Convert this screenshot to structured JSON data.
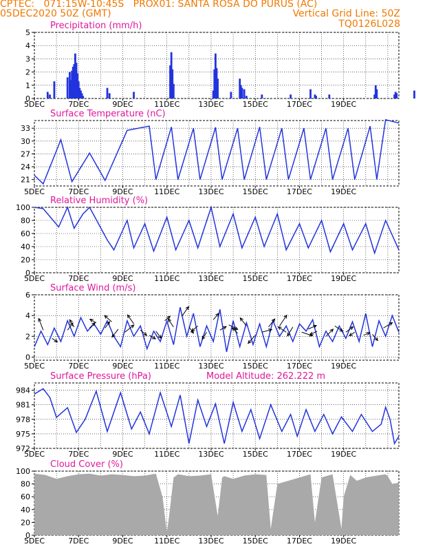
{
  "header": {
    "line1": "CPTEC:   071:15W-10:45S   PROX01: SANTA ROSA DO PURUS (AC)",
    "line2_left": "05DEC2020 50Z (GMT)",
    "line2_right": "Vertical Grid Line: 50Z",
    "line3_right": "TQ0126L028"
  },
  "colors": {
    "header": "#f07800",
    "title": "#e0179b",
    "line": "#2233dd",
    "cloud": "#a9a9a9",
    "arrow": "#000000"
  },
  "x_labels": [
    "5DEC",
    "7DEC",
    "9DEC",
    "11DEC",
    "13DEC",
    "15DEC",
    "17DEC",
    "19DEC"
  ],
  "chart_data": [
    {
      "type": "bar",
      "title": "Precipitation (mm/h)",
      "ylim": [
        0,
        5
      ],
      "yticks": [
        0,
        1,
        2,
        3,
        4,
        5
      ],
      "x_days": [
        0.6,
        0.7,
        0.9,
        1.5,
        1.6,
        1.65,
        1.7,
        1.75,
        1.8,
        1.85,
        1.9,
        1.95,
        2.0,
        2.05,
        2.1,
        2.15,
        2.2,
        3.3,
        3.4,
        4.5,
        6.15,
        6.2,
        6.25,
        6.3,
        8.1,
        8.15,
        8.2,
        8.25,
        8.3,
        8.9,
        9.3,
        9.35,
        9.4,
        9.5,
        9.6,
        10.3,
        11.6,
        12.5,
        12.7,
        12.75,
        13.35,
        15.4,
        15.45,
        15.5,
        16.3,
        16.35,
        16.4,
        17.2
      ],
      "values": [
        0.5,
        0.3,
        1.3,
        1.6,
        2.0,
        1.4,
        2.1,
        2.4,
        2.6,
        3.4,
        2.7,
        1.9,
        1.3,
        0.8,
        0.6,
        0.4,
        0.2,
        0.8,
        0.4,
        0.5,
        2.5,
        3.5,
        2.2,
        1.1,
        0.6,
        2.2,
        3.4,
        2.3,
        1.5,
        0.5,
        1.5,
        1.0,
        0.8,
        0.7,
        0.2,
        0.3,
        0.3,
        0.7,
        0.3,
        0.2,
        0.3,
        0.3,
        1.0,
        0.7,
        0.3,
        0.5,
        0.4,
        0.6
      ]
    },
    {
      "type": "line",
      "title": "Surface Temperature (nC)",
      "ylim": [
        19.5,
        34.8
      ],
      "yticks": [
        21,
        24,
        27,
        30,
        33
      ],
      "series": [
        {
          "x": [
            0,
            0.4,
            1.2,
            1.7,
            2.5,
            3.2,
            4.2,
            5.2,
            5.5,
            6.2,
            6.5,
            7.2,
            7.5,
            8.2,
            8.5,
            9.2,
            9.5,
            10.2,
            10.5,
            11.2,
            11.5,
            12.2,
            12.5,
            13.2,
            13.5,
            14.2,
            14.5,
            15.2,
            15.5,
            15.9,
            16.5
          ],
          "y": [
            22.0,
            20.0,
            30.3,
            20.5,
            27.2,
            20.8,
            32.5,
            33.5,
            21.0,
            33.3,
            21.0,
            33.0,
            21.0,
            33.2,
            21.0,
            33.0,
            21.0,
            33.3,
            21.0,
            33.0,
            21.0,
            33.0,
            21.0,
            33.0,
            21.0,
            33.0,
            21.0,
            33.5,
            21.0,
            35.0,
            34.2
          ]
        }
      ]
    },
    {
      "type": "line",
      "title": "Relative Humidity (%)",
      "ylim": [
        0,
        100
      ],
      "yticks": [
        0,
        20,
        40,
        60,
        80,
        100
      ],
      "series": [
        {
          "x": [
            0,
            0.4,
            0.8,
            1.1,
            1.5,
            1.8,
            2.2,
            2.5,
            3.3,
            3.6,
            4.2,
            4.5,
            5.0,
            5.4,
            6.0,
            6.4,
            7.0,
            7.4,
            8.0,
            8.4,
            9.0,
            9.4,
            10.0,
            10.4,
            11.0,
            11.4,
            12.0,
            12.4,
            13.0,
            13.4,
            14.0,
            14.4,
            15.0,
            15.4,
            15.9,
            16.5
          ],
          "y": [
            100,
            98,
            82,
            70,
            100,
            68,
            90,
            100,
            50,
            35,
            80,
            38,
            75,
            33,
            85,
            35,
            80,
            38,
            100,
            40,
            90,
            38,
            85,
            40,
            90,
            35,
            75,
            38,
            80,
            32,
            75,
            35,
            75,
            30,
            80,
            35
          ]
        }
      ]
    },
    {
      "type": "line",
      "title": "Surface Wind (m/s)",
      "ylim": [
        -0.3,
        6
      ],
      "yticks": [
        0,
        2,
        4,
        6
      ],
      "series": [
        {
          "x": [
            0,
            0.3,
            0.6,
            0.9,
            1.2,
            1.5,
            1.8,
            2.1,
            2.4,
            2.7,
            3.0,
            3.3,
            3.6,
            3.9,
            4.2,
            4.5,
            4.8,
            5.1,
            5.4,
            5.7,
            6.0,
            6.3,
            6.6,
            6.9,
            7.2,
            7.5,
            7.8,
            8.1,
            8.4,
            8.7,
            9.0,
            9.3,
            9.6,
            9.9,
            10.2,
            10.5,
            10.8,
            11.1,
            11.4,
            11.7,
            12.0,
            12.3,
            12.6,
            12.9,
            13.2,
            13.5,
            13.8,
            14.1,
            14.4,
            14.7,
            15.0,
            15.3,
            15.6,
            15.9,
            16.2,
            16.5
          ],
          "y": [
            1.0,
            2.5,
            1.2,
            2.8,
            1.5,
            3.5,
            2.0,
            3.8,
            2.5,
            3.2,
            2.2,
            3.5,
            2.0,
            1.0,
            3.5,
            2.0,
            3.0,
            0.8,
            2.5,
            1.5,
            3.5,
            1.2,
            4.8,
            2.0,
            4.2,
            1.0,
            3.0,
            1.5,
            4.6,
            0.5,
            3.5,
            1.0,
            3.3,
            1.2,
            3.2,
            1.0,
            3.5,
            2.0,
            3.0,
            1.5,
            3.2,
            2.5,
            3.6,
            1.0,
            2.5,
            1.5,
            3.0,
            1.8,
            3.4,
            1.5,
            4.2,
            1.0,
            3.5,
            2.0,
            4.0,
            2.4
          ]
        }
      ],
      "arrows": {
        "x": [
          0.4,
          0.8,
          1.5,
          1.8,
          2.5,
          2.8,
          3.2,
          3.5,
          3.8,
          4.1,
          4.5,
          4.8,
          5.2,
          5.5,
          5.9,
          6.3,
          6.7,
          7.0,
          7.4,
          7.8,
          8.1,
          8.4,
          8.8,
          9.2,
          9.6,
          10.0,
          10.3,
          10.6,
          11.1,
          11.4,
          11.7,
          12.1,
          12.4,
          12.8,
          13.2,
          13.6,
          14.1,
          14.5,
          14.9,
          15.3,
          15.8
        ],
        "y": [
          2.6,
          1.8,
          2.6,
          2.9,
          2.8,
          3.3,
          2.8,
          3.4,
          2.7,
          2.4,
          3.2,
          2.6,
          2.1,
          2.5,
          3.5,
          2.9,
          4.0,
          2.9,
          3.0,
          2.4,
          3.6,
          2.6,
          3.1,
          2.3,
          3.0,
          2.1,
          2.4,
          2.9,
          3.0,
          2.4,
          2.9,
          2.4,
          2.7,
          2.5,
          2.0,
          3.0,
          2.4,
          2.4,
          2.1,
          2.2,
          2.8
        ],
        "u": [
          -0.5,
          0.6,
          0.6,
          -0.5,
          0.6,
          -0.7,
          0.5,
          -0.8,
          -0.7,
          1.0,
          -0.7,
          0.7,
          0.7,
          0.6,
          0.6,
          -0.6,
          0.7,
          0.5,
          -0.7,
          -0.5,
          0.6,
          0.7,
          1.0,
          -0.6,
          -0.7,
          -0.8,
          1.1,
          0.7,
          0.8,
          -0.9,
          -0.6,
          1.2,
          0.9,
          -0.8,
          0.8,
          0.9,
          0.8,
          -0.6,
          0.7,
          0.6,
          1.0
        ],
        "v": [
          1.3,
          -0.4,
          0.8,
          0.8,
          0.6,
          0.4,
          0.7,
          0.7,
          -0.9,
          0.8,
          1.0,
          -0.6,
          -0.4,
          -0.8,
          0.5,
          0.9,
          1.0,
          -0.7,
          -0.6,
          -0.8,
          0.7,
          0.4,
          -0.5,
          0.6,
          0.9,
          -0.9,
          0.3,
          0.9,
          1.2,
          0.6,
          -1.0,
          -0.4,
          0.4,
          -0.4,
          0.8,
          -0.6,
          0.6,
          -0.4,
          0.3,
          -0.7,
          0.6
        ]
      }
    },
    {
      "type": "line",
      "title": "Surface Pressure (hPa)",
      "subtitle": "Model Altitude: 262.222  m",
      "ylim": [
        972,
        985.5
      ],
      "yticks": [
        972,
        975,
        978,
        981,
        984
      ],
      "series": [
        {
          "x": [
            0,
            0.4,
            0.7,
            1.0,
            1.5,
            1.9,
            2.3,
            2.8,
            3.3,
            3.9,
            4.4,
            4.8,
            5.2,
            5.7,
            6.2,
            6.6,
            7.0,
            7.4,
            7.8,
            8.2,
            8.6,
            9.0,
            9.4,
            9.8,
            10.2,
            10.7,
            11.2,
            11.6,
            11.9,
            12.3,
            12.7,
            13.1,
            13.5,
            13.9,
            14.4,
            14.8,
            15.3,
            15.7,
            15.9,
            16.1,
            16.3,
            16.5
          ],
          "y": [
            983.2,
            984.3,
            982.5,
            978.4,
            980.4,
            975.3,
            978.0,
            983.8,
            975.5,
            983.5,
            976.0,
            979.5,
            975.0,
            983.5,
            976.5,
            983.0,
            973.0,
            982.0,
            976.5,
            981.2,
            973.0,
            981.5,
            975.5,
            980.0,
            974.0,
            981.0,
            975.5,
            979.0,
            974.5,
            980.0,
            975.5,
            979.0,
            975.0,
            978.5,
            975.5,
            979.0,
            975.5,
            977.0,
            980.5,
            978.0,
            973.0,
            974.5
          ]
        }
      ]
    },
    {
      "type": "area",
      "title": "Cloud Cover (%)",
      "ylim": [
        0,
        100
      ],
      "yticks": [
        0,
        20,
        40,
        60,
        80,
        100
      ],
      "series": [
        {
          "x": [
            0,
            0.5,
            1.0,
            1.5,
            2.0,
            2.5,
            3.0,
            3.5,
            4.0,
            4.5,
            5.0,
            5.5,
            5.8,
            6.0,
            6.1,
            6.3,
            6.5,
            6.7,
            7.0,
            7.5,
            8.0,
            8.3,
            8.5,
            8.6,
            9.0,
            9.5,
            10.0,
            10.5,
            10.7,
            11.0,
            11.5,
            12.0,
            12.5,
            12.7,
            13.0,
            13.5,
            13.9,
            14.0,
            14.3,
            14.6,
            15.0,
            15.5,
            15.9,
            16.0,
            16.2,
            16.5
          ],
          "y": [
            96,
            94,
            88,
            92,
            95,
            96,
            93,
            95,
            94,
            92,
            93,
            96,
            60,
            5,
            30,
            90,
            95,
            94,
            92,
            93,
            95,
            30,
            90,
            92,
            88,
            93,
            95,
            94,
            10,
            80,
            85,
            90,
            95,
            20,
            90,
            95,
            10,
            60,
            94,
            85,
            90,
            93,
            95,
            92,
            80,
            82
          ]
        }
      ]
    }
  ]
}
